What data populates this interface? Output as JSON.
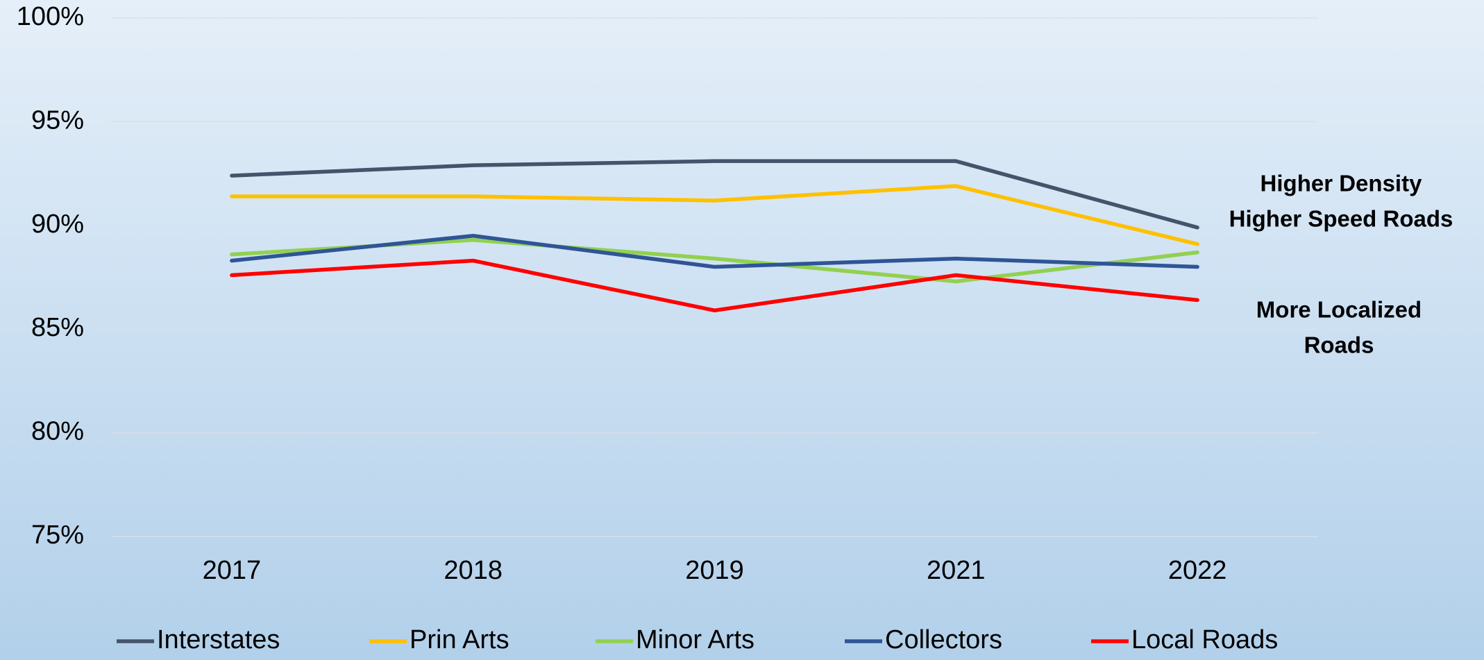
{
  "chart_data": {
    "type": "line",
    "categories": [
      "2017",
      "2018",
      "2019",
      "2021",
      "2022"
    ],
    "series": [
      {
        "name": "Interstates",
        "color": "#44546a",
        "values": [
          92.4,
          92.9,
          93.1,
          93.1,
          89.9
        ]
      },
      {
        "name": "Prin Arts",
        "color": "#ffc000",
        "values": [
          91.4,
          91.4,
          91.2,
          91.9,
          89.1
        ]
      },
      {
        "name": "Minor Arts",
        "color": "#92d050",
        "values": [
          88.6,
          89.3,
          88.4,
          87.3,
          88.7
        ]
      },
      {
        "name": "Collectors",
        "color": "#2f5597",
        "values": [
          88.3,
          89.5,
          88.0,
          88.4,
          88.0
        ]
      },
      {
        "name": "Local Roads",
        "color": "#ff0000",
        "values": [
          87.6,
          88.3,
          85.9,
          87.6,
          86.4
        ]
      }
    ],
    "ylim": [
      75,
      100
    ],
    "yticks": [
      {
        "value": 75,
        "label": "75%"
      },
      {
        "value": 80,
        "label": "80%"
      },
      {
        "value": 85,
        "label": "85%"
      },
      {
        "value": 90,
        "label": "90%"
      },
      {
        "value": 95,
        "label": "95%"
      },
      {
        "value": 100,
        "label": "100%"
      }
    ],
    "grid": true,
    "legend": "bottom",
    "annotations": [
      {
        "lines": [
          "Higher Density",
          "Higher Speed Roads"
        ]
      },
      {
        "lines": [
          "More Localized",
          "Roads"
        ]
      }
    ]
  }
}
